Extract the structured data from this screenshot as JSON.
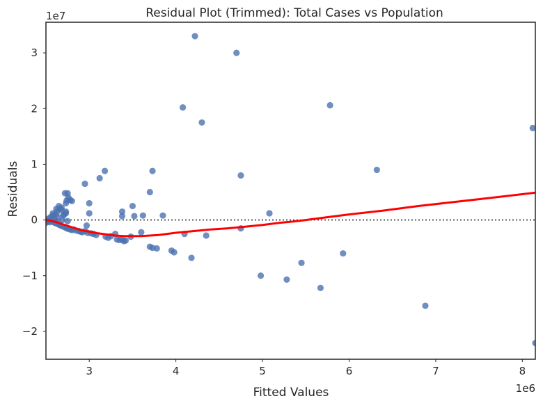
{
  "chart_data": {
    "type": "scatter",
    "title": "Residual Plot (Trimmed): Total Cases vs Population",
    "xlabel": "Fitted Values",
    "ylabel": "Residuals",
    "x_offset_label": "1e6",
    "y_offset_label": "1e7",
    "xlim": [
      2.5,
      8.15
    ],
    "ylim": [
      -2.5,
      3.55
    ],
    "x_scale": 1000000,
    "y_scale": 10000000,
    "x_ticks": [
      3,
      4,
      5,
      6,
      7,
      8
    ],
    "x_tick_labels": [
      "3",
      "4",
      "5",
      "6",
      "7",
      "8"
    ],
    "y_ticks": [
      -2,
      -1,
      0,
      1,
      2,
      3
    ],
    "y_tick_labels": [
      "−2",
      "−1",
      "0",
      "1",
      "2",
      "3"
    ],
    "grid": false,
    "colors": {
      "points": "#4c72b0",
      "lowess": "#ff0000",
      "zero_line": "#333333",
      "axes": "#262626"
    },
    "points": [
      [
        2.5,
        -0.05
      ],
      [
        2.52,
        -0.02
      ],
      [
        2.53,
        0.02
      ],
      [
        2.54,
        -0.04
      ],
      [
        2.55,
        0.05
      ],
      [
        2.56,
        0.0
      ],
      [
        2.57,
        -0.03
      ],
      [
        2.58,
        0.08
      ],
      [
        2.59,
        0.02
      ],
      [
        2.6,
        -0.05
      ],
      [
        2.61,
        0.1
      ],
      [
        2.62,
        -0.02
      ],
      [
        2.63,
        0.15
      ],
      [
        2.64,
        0.05
      ],
      [
        2.65,
        -0.08
      ],
      [
        2.66,
        0.2
      ],
      [
        2.67,
        -0.1
      ],
      [
        2.68,
        0.18
      ],
      [
        2.69,
        0.0
      ],
      [
        2.7,
        -0.12
      ],
      [
        2.71,
        0.1
      ],
      [
        2.72,
        -0.13
      ],
      [
        2.73,
        0.12
      ],
      [
        2.74,
        -0.15
      ],
      [
        2.75,
        -0.02
      ],
      [
        2.76,
        -0.16
      ],
      [
        2.78,
        -0.17
      ],
      [
        2.8,
        -0.18
      ],
      [
        2.82,
        -0.17
      ],
      [
        2.85,
        -0.19
      ],
      [
        2.88,
        -0.2
      ],
      [
        2.9,
        -0.21
      ],
      [
        2.92,
        -0.22
      ],
      [
        2.95,
        -0.2
      ],
      [
        2.98,
        -0.23
      ],
      [
        3.02,
        -0.24
      ],
      [
        3.05,
        -0.25
      ],
      [
        3.08,
        -0.27
      ],
      [
        2.58,
        0.12
      ],
      [
        2.62,
        0.2
      ],
      [
        2.65,
        0.25
      ],
      [
        2.68,
        0.22
      ],
      [
        2.6,
        -0.04
      ],
      [
        2.63,
        -0.07
      ],
      [
        2.66,
        -0.09
      ],
      [
        2.7,
        0.08
      ],
      [
        2.72,
        0.48
      ],
      [
        2.73,
        0.3
      ],
      [
        2.74,
        0.35
      ],
      [
        2.75,
        0.48
      ],
      [
        2.76,
        0.4
      ],
      [
        2.78,
        0.36
      ],
      [
        2.8,
        0.34
      ],
      [
        2.73,
        0.15
      ],
      [
        2.95,
        0.65
      ],
      [
        3.0,
        0.3
      ],
      [
        3.0,
        0.12
      ],
      [
        2.97,
        -0.1
      ],
      [
        3.12,
        0.75
      ],
      [
        3.18,
        0.88
      ],
      [
        3.19,
        -0.3
      ],
      [
        3.22,
        -0.32
      ],
      [
        3.25,
        -0.29
      ],
      [
        3.3,
        -0.25
      ],
      [
        3.32,
        -0.35
      ],
      [
        3.35,
        -0.36
      ],
      [
        3.38,
        -0.35
      ],
      [
        3.42,
        -0.37
      ],
      [
        3.4,
        -0.38
      ],
      [
        3.38,
        0.15
      ],
      [
        3.38,
        0.07
      ],
      [
        3.5,
        0.25
      ],
      [
        3.52,
        0.07
      ],
      [
        3.48,
        -0.3
      ],
      [
        3.6,
        -0.22
      ],
      [
        3.62,
        0.08
      ],
      [
        3.7,
        0.5
      ],
      [
        3.73,
        0.88
      ],
      [
        3.7,
        -0.48
      ],
      [
        3.73,
        -0.5
      ],
      [
        3.78,
        -0.51
      ],
      [
        3.85,
        0.08
      ],
      [
        3.95,
        -0.55
      ],
      [
        3.98,
        -0.58
      ],
      [
        4.08,
        2.02
      ],
      [
        4.1,
        -0.25
      ],
      [
        4.18,
        -0.68
      ],
      [
        4.22,
        3.3
      ],
      [
        4.3,
        1.75
      ],
      [
        4.35,
        -0.28
      ],
      [
        4.7,
        3.0
      ],
      [
        4.75,
        0.8
      ],
      [
        4.75,
        -0.15
      ],
      [
        4.98,
        -1.0
      ],
      [
        5.08,
        0.12
      ],
      [
        5.28,
        -1.07
      ],
      [
        5.45,
        -0.77
      ],
      [
        5.67,
        -1.22
      ],
      [
        5.78,
        2.06
      ],
      [
        5.93,
        -0.6
      ],
      [
        6.32,
        0.9
      ],
      [
        6.88,
        -1.54
      ],
      [
        8.12,
        1.65
      ],
      [
        8.15,
        -2.21
      ]
    ],
    "lowess": [
      [
        2.5,
        0.0
      ],
      [
        2.6,
        -0.03
      ],
      [
        2.7,
        -0.08
      ],
      [
        2.8,
        -0.13
      ],
      [
        2.9,
        -0.18
      ],
      [
        3.0,
        -0.21
      ],
      [
        3.1,
        -0.24
      ],
      [
        3.2,
        -0.26
      ],
      [
        3.3,
        -0.28
      ],
      [
        3.4,
        -0.29
      ],
      [
        3.5,
        -0.29
      ],
      [
        3.6,
        -0.29
      ],
      [
        3.7,
        -0.28
      ],
      [
        3.8,
        -0.27
      ],
      [
        3.9,
        -0.25
      ],
      [
        4.0,
        -0.23
      ],
      [
        4.2,
        -0.2
      ],
      [
        4.4,
        -0.17
      ],
      [
        4.6,
        -0.15
      ],
      [
        4.8,
        -0.12
      ],
      [
        5.0,
        -0.09
      ],
      [
        5.2,
        -0.05
      ],
      [
        5.4,
        -0.02
      ],
      [
        5.6,
        0.02
      ],
      [
        5.8,
        0.06
      ],
      [
        6.0,
        0.1
      ],
      [
        6.4,
        0.17
      ],
      [
        6.8,
        0.25
      ],
      [
        7.2,
        0.32
      ],
      [
        7.6,
        0.39
      ],
      [
        8.15,
        0.49
      ]
    ]
  }
}
